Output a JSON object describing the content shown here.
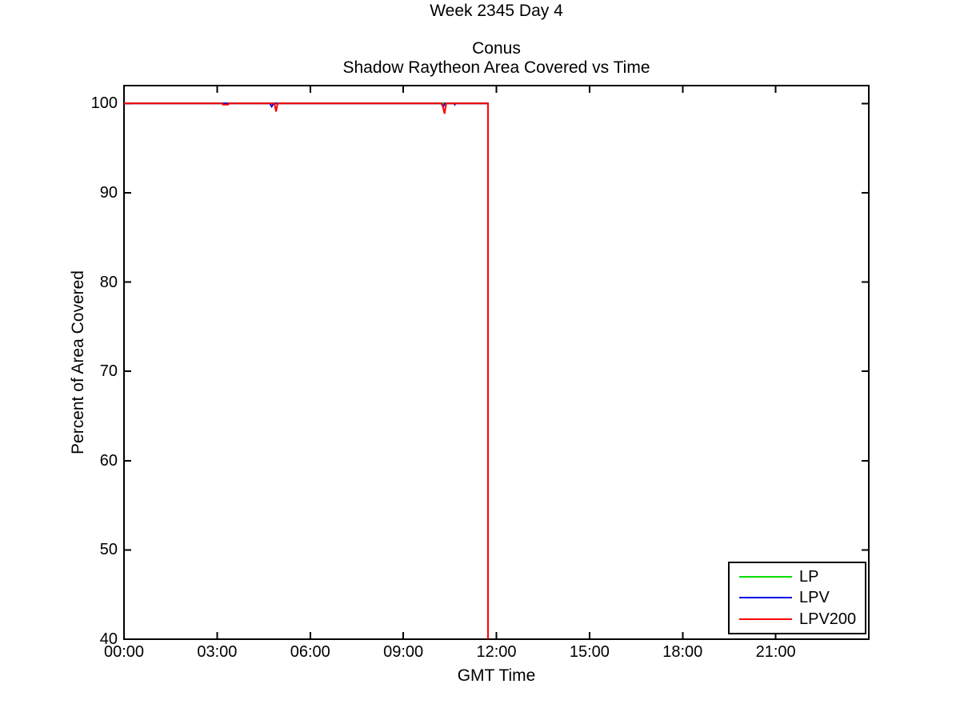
{
  "figure": {
    "super_title": "Week 2345 Day 4",
    "title_line1": "Conus",
    "title_line2": "Shadow Raytheon Area Covered vs Time",
    "xlabel": "GMT Time",
    "ylabel": "Percent of Area Covered"
  },
  "chart_data": {
    "type": "line",
    "super_title": "Week 2345 Day 4",
    "title": "Conus",
    "subtitle": "Shadow Raytheon Area Covered vs Time",
    "xlabel": "GMT Time",
    "ylabel": "Percent of Area Covered",
    "x_unit": "hours GMT",
    "xlim_hours": [
      0,
      24
    ],
    "ylim": [
      40,
      102
    ],
    "x_ticks": [
      {
        "hour": 0,
        "label": "00:00"
      },
      {
        "hour": 3,
        "label": "03:00"
      },
      {
        "hour": 6,
        "label": "06:00"
      },
      {
        "hour": 9,
        "label": "09:00"
      },
      {
        "hour": 12,
        "label": "12:00"
      },
      {
        "hour": 15,
        "label": "15:00"
      },
      {
        "hour": 18,
        "label": "18:00"
      },
      {
        "hour": 21,
        "label": "21:00"
      }
    ],
    "y_ticks": [
      40,
      50,
      60,
      70,
      80,
      90,
      100
    ],
    "grid": false,
    "legend_position": "bottom-right",
    "axis_color": "#000000",
    "series": [
      {
        "name": "LP",
        "color": "#00e000",
        "points": [
          [
            0,
            100
          ],
          [
            11.73,
            100
          ],
          [
            11.73,
            40
          ]
        ]
      },
      {
        "name": "LPV",
        "color": "#0000e0",
        "points": [
          [
            0,
            100
          ],
          [
            4.7,
            100
          ],
          [
            4.76,
            99.65
          ],
          [
            4.82,
            100
          ],
          [
            10.23,
            100
          ],
          [
            10.28,
            99.6
          ],
          [
            10.34,
            100
          ],
          [
            10.64,
            100
          ],
          [
            10.66,
            99.88
          ],
          [
            10.68,
            100
          ],
          [
            11.73,
            100
          ],
          [
            11.73,
            40
          ]
        ]
      },
      {
        "name": "LPV200",
        "color": "#ff0000",
        "points": [
          [
            0,
            100
          ],
          [
            3.17,
            100
          ],
          [
            3.19,
            99.87
          ],
          [
            3.36,
            99.87
          ],
          [
            3.38,
            100
          ],
          [
            4.85,
            100
          ],
          [
            4.9,
            99.1
          ],
          [
            4.95,
            100
          ],
          [
            10.25,
            100
          ],
          [
            10.33,
            98.85
          ],
          [
            10.38,
            100
          ],
          [
            11.73,
            100
          ],
          [
            11.73,
            40
          ]
        ]
      }
    ]
  }
}
